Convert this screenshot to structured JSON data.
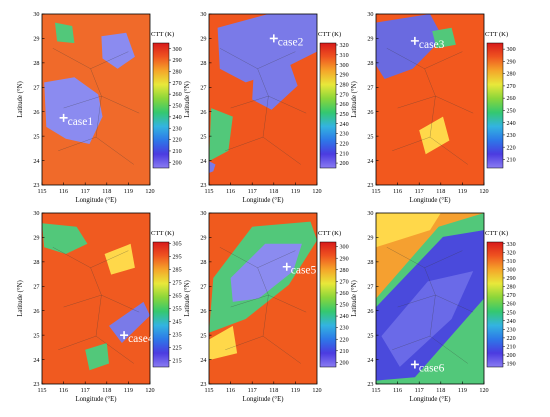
{
  "figure": {
    "panels": [
      {
        "case_label": "case1",
        "cb_title": "CTT (K)",
        "cb_min": 195,
        "cb_max": 305,
        "cb_ticks": [
          "300",
          "290",
          "280",
          "270",
          "260",
          "250",
          "240",
          "230",
          "220",
          "210",
          "200"
        ],
        "marker": {
          "lon": 116.0,
          "lat": 25.75
        }
      },
      {
        "case_label": "case2",
        "cb_title": "CTT (K)",
        "cb_min": 195,
        "cb_max": 322,
        "cb_ticks": [
          "320",
          "310",
          "300",
          "290",
          "280",
          "270",
          "260",
          "250",
          "240",
          "230",
          "220",
          "210",
          "200"
        ],
        "marker": {
          "lon": 118.0,
          "lat": 29.0
        }
      },
      {
        "case_label": "case3",
        "cb_title": "CTT (K)",
        "cb_min": 203,
        "cb_max": 305,
        "cb_ticks": [
          "300",
          "290",
          "280",
          "270",
          "260",
          "250",
          "240",
          "230",
          "220",
          "210"
        ],
        "marker": {
          "lon": 116.8,
          "lat": 28.9
        }
      },
      {
        "case_label": "case4",
        "cb_title": "CTT (K)",
        "cb_min": 210,
        "cb_max": 306,
        "cb_ticks": [
          "305",
          "295",
          "285",
          "275",
          "265",
          "255",
          "245",
          "235",
          "225",
          "215"
        ],
        "marker": {
          "lon": 118.8,
          "lat": 25.0
        }
      },
      {
        "case_label": "case5",
        "cb_title": "CTT (K)",
        "cb_min": 196,
        "cb_max": 304,
        "cb_ticks": [
          "300",
          "290",
          "280",
          "270",
          "260",
          "250",
          "240",
          "230",
          "220",
          "210",
          "200"
        ],
        "marker": {
          "lon": 118.6,
          "lat": 27.8
        }
      },
      {
        "case_label": "case6",
        "cb_title": "CTT (K)",
        "cb_min": 186,
        "cb_max": 332,
        "cb_ticks": [
          "330",
          "320",
          "310",
          "300",
          "290",
          "280",
          "270",
          "260",
          "250",
          "240",
          "230",
          "220",
          "210",
          "200",
          "190"
        ],
        "marker": {
          "lon": 116.8,
          "lat": 23.8
        }
      }
    ]
  },
  "chart_data": [
    {
      "type": "heatmap",
      "variable": "CTT (K)",
      "case": "case1",
      "xlabel": "Longitude (°E)",
      "ylabel": "Latitude (°N)",
      "xlim": [
        115,
        120
      ],
      "ylim": [
        23,
        30
      ],
      "xticks": [
        "115",
        "116",
        "117",
        "118",
        "119",
        "120"
      ],
      "yticks": [
        "23",
        "24",
        "25",
        "26",
        "27",
        "28",
        "29",
        "30"
      ],
      "colorbar": {
        "min": 195,
        "max": 305,
        "ticks": [
          200,
          210,
          220,
          230,
          240,
          250,
          260,
          270,
          280,
          290,
          300
        ]
      },
      "case_point": {
        "lon": 116.0,
        "lat": 25.75
      }
    },
    {
      "type": "heatmap",
      "variable": "CTT (K)",
      "case": "case2",
      "xlabel": "Longitude (°E)",
      "ylabel": "Latitude (°N)",
      "xlim": [
        115,
        120
      ],
      "ylim": [
        23,
        30
      ],
      "xticks": [
        "115",
        "116",
        "117",
        "118",
        "119",
        "120"
      ],
      "yticks": [
        "23",
        "24",
        "25",
        "26",
        "27",
        "28",
        "29",
        "30"
      ],
      "colorbar": {
        "min": 195,
        "max": 322,
        "ticks": [
          200,
          210,
          220,
          230,
          240,
          250,
          260,
          270,
          280,
          290,
          300,
          310,
          320
        ]
      },
      "case_point": {
        "lon": 118.0,
        "lat": 29.0
      }
    },
    {
      "type": "heatmap",
      "variable": "CTT (K)",
      "case": "case3",
      "xlabel": "Longitude (°E)",
      "ylabel": "Latitude (°N)",
      "xlim": [
        115,
        120
      ],
      "ylim": [
        23,
        30
      ],
      "xticks": [
        "115",
        "116",
        "117",
        "118",
        "119",
        "120"
      ],
      "yticks": [
        "23",
        "24",
        "25",
        "26",
        "27",
        "28",
        "29",
        "30"
      ],
      "colorbar": {
        "min": 203,
        "max": 305,
        "ticks": [
          210,
          220,
          230,
          240,
          250,
          260,
          270,
          280,
          290,
          300
        ]
      },
      "case_point": {
        "lon": 116.8,
        "lat": 28.9
      }
    },
    {
      "type": "heatmap",
      "variable": "CTT (K)",
      "case": "case4",
      "xlabel": "Longitude (°E)",
      "ylabel": "Latitude (°N)",
      "xlim": [
        115,
        120
      ],
      "ylim": [
        23,
        30
      ],
      "xticks": [
        "115",
        "116",
        "117",
        "118",
        "119",
        "120"
      ],
      "yticks": [
        "23",
        "24",
        "25",
        "26",
        "27",
        "28",
        "29",
        "30"
      ],
      "colorbar": {
        "min": 210,
        "max": 306,
        "ticks": [
          215,
          225,
          235,
          245,
          255,
          265,
          275,
          285,
          295,
          305
        ]
      },
      "case_point": {
        "lon": 118.8,
        "lat": 25.0
      }
    },
    {
      "type": "heatmap",
      "variable": "CTT (K)",
      "case": "case5",
      "xlabel": "Longitude (°E)",
      "ylabel": "Latitude (°N)",
      "xlim": [
        115,
        120
      ],
      "ylim": [
        23,
        30
      ],
      "xticks": [
        "115",
        "116",
        "117",
        "118",
        "119",
        "120"
      ],
      "yticks": [
        "23",
        "24",
        "25",
        "26",
        "27",
        "28",
        "29",
        "30"
      ],
      "colorbar": {
        "min": 196,
        "max": 304,
        "ticks": [
          200,
          210,
          220,
          230,
          240,
          250,
          260,
          270,
          280,
          290,
          300
        ]
      },
      "case_point": {
        "lon": 118.6,
        "lat": 27.8
      }
    },
    {
      "type": "heatmap",
      "variable": "CTT (K)",
      "case": "case6",
      "xlabel": "Longitude (°E)",
      "ylabel": "Latitude (°N)",
      "xlim": [
        115,
        120
      ],
      "ylim": [
        23,
        30
      ],
      "xticks": [
        "115",
        "116",
        "117",
        "118",
        "119",
        "120"
      ],
      "yticks": [
        "23",
        "24",
        "25",
        "26",
        "27",
        "28",
        "29",
        "30"
      ],
      "colorbar": {
        "min": 186,
        "max": 332,
        "ticks": [
          190,
          200,
          210,
          220,
          230,
          240,
          250,
          260,
          270,
          280,
          290,
          300,
          310,
          320,
          330
        ]
      },
      "case_point": {
        "lon": 116.8,
        "lat": 23.8
      }
    }
  ]
}
